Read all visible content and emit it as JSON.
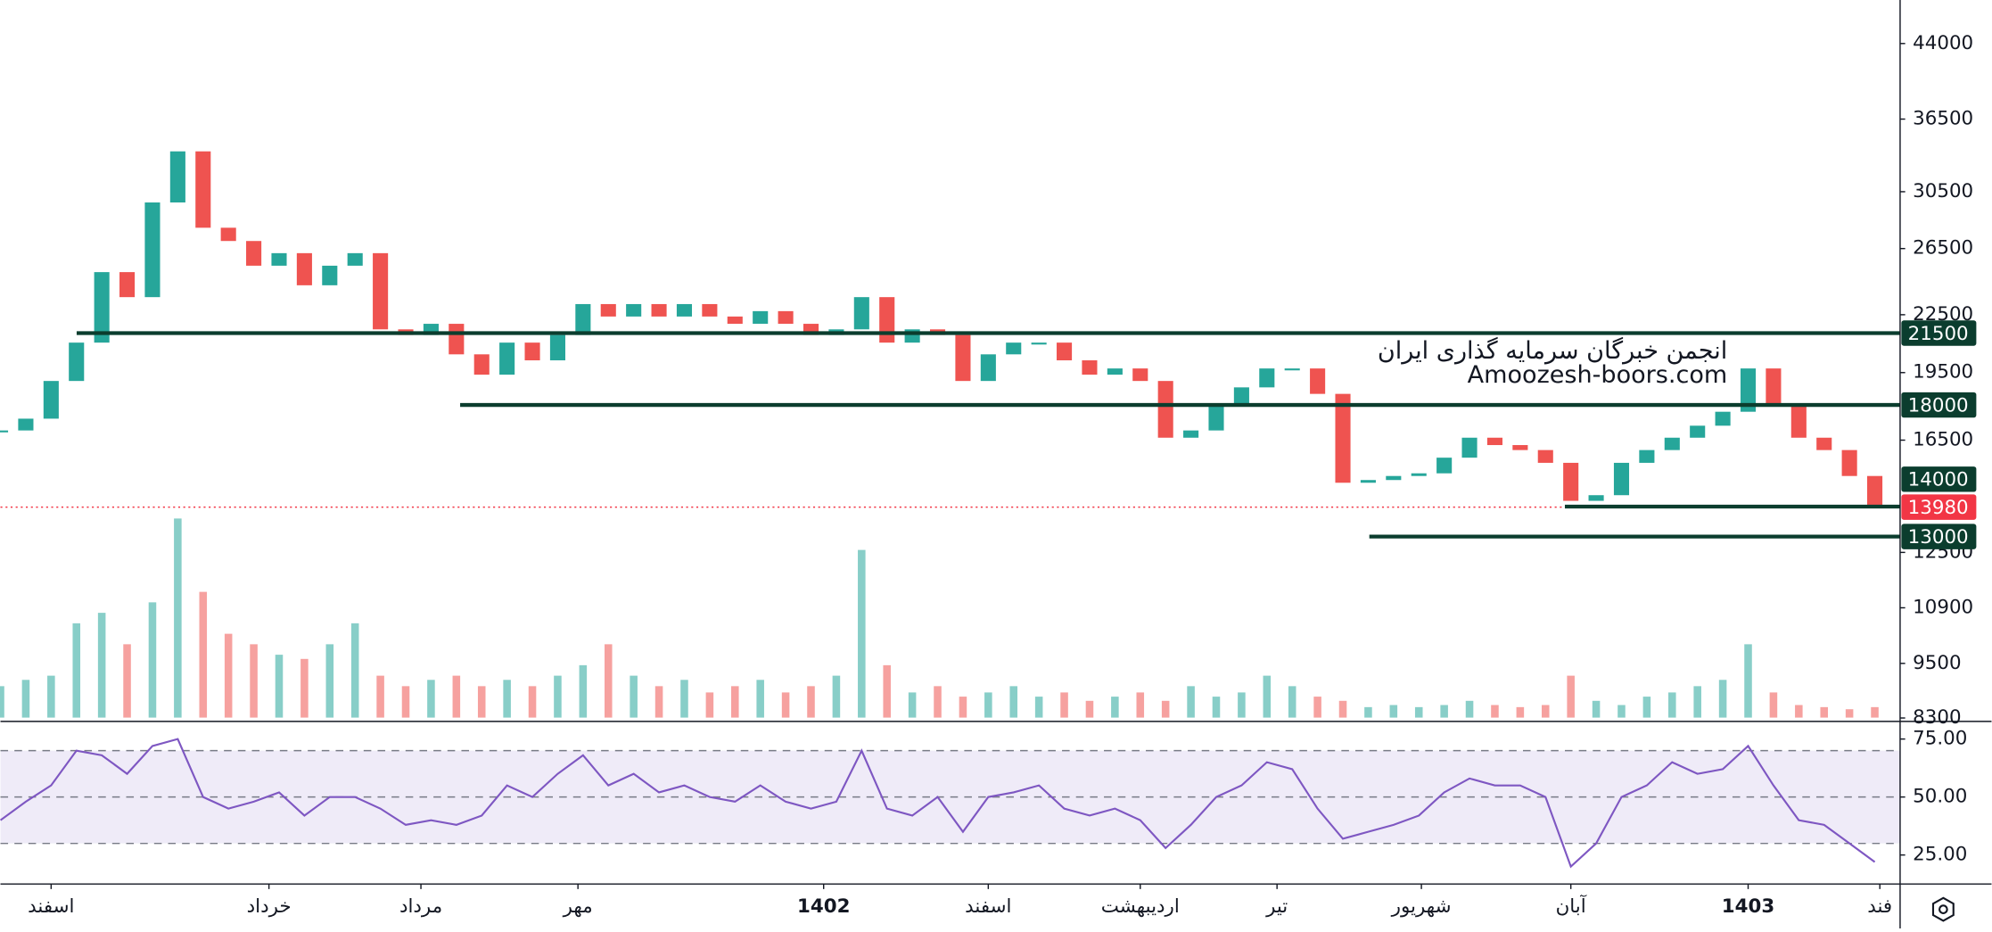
{
  "chart_data": {
    "type": "candlestick",
    "log": true,
    "ylim": [
      8230,
      49000
    ],
    "yticks": [
      44000,
      36500,
      30500,
      26500,
      22500,
      19500,
      16500,
      12500,
      10900,
      9500,
      8300
    ],
    "xlim": [
      0,
      75
    ],
    "xticks": [
      {
        "value": 2,
        "label": "اسفند"
      },
      {
        "value": 10.6,
        "label": "خرداد"
      },
      {
        "value": 16.6,
        "label": "مرداد"
      },
      {
        "value": 22.8,
        "label": "مهر"
      },
      {
        "value": 32.5,
        "label": "1402"
      },
      {
        "value": 39,
        "label": "اسفند"
      },
      {
        "value": 45,
        "label": "اردیبهشت"
      },
      {
        "value": 50.4,
        "label": "تیر"
      },
      {
        "value": 56.1,
        "label": "شهریور"
      },
      {
        "value": 62,
        "label": "آبان"
      },
      {
        "value": 69,
        "label": "1403"
      },
      {
        "value": 74.2,
        "label": "فند"
      }
    ],
    "closes": [
      16900,
      17400,
      19100,
      21000,
      25000,
      23500,
      29700,
      33700,
      27900,
      27000,
      25400,
      26200,
      24200,
      25400,
      26200,
      21700,
      21400,
      22000,
      20400,
      19400,
      21000,
      20100,
      21400,
      23100,
      22400,
      23100,
      22400,
      23100,
      22400,
      22000,
      22700,
      22000,
      21400,
      21700,
      23500,
      21000,
      21700,
      21400,
      19100,
      20400,
      21000,
      21000,
      20100,
      19400,
      19700,
      19100,
      16600,
      16900,
      18000,
      18800,
      19700,
      19700,
      18500,
      14850,
      14950,
      15100,
      15200,
      15800,
      16600,
      16300,
      16100,
      15600,
      14200,
      14400,
      15600,
      16100,
      16600,
      17100,
      17700,
      19700,
      18000,
      16600,
      16100,
      15100,
      13980
    ],
    "volumes": [
      15,
      18,
      20,
      45,
      50,
      35,
      55,
      95,
      60,
      40,
      35,
      30,
      28,
      35,
      45,
      20,
      15,
      18,
      20,
      15,
      18,
      15,
      20,
      25,
      35,
      20,
      15,
      18,
      12,
      15,
      18,
      12,
      15,
      20,
      80,
      25,
      12,
      15,
      10,
      12,
      15,
      10,
      12,
      8,
      10,
      12,
      8,
      15,
      10,
      12,
      20,
      15,
      10,
      8,
      5,
      6,
      5,
      6,
      8,
      6,
      5,
      6,
      20,
      8,
      6,
      10,
      12,
      15,
      18,
      35,
      12,
      6,
      5,
      4,
      5
    ],
    "volume_ylim": [
      0,
      100
    ],
    "up_color": "#26a69a",
    "down_color": "#ef5350",
    "levels": [
      21500,
      18000,
      14000,
      13000
    ],
    "level_color": "#0b3d2e",
    "last_price": 13980,
    "last_price_color": "#f23645",
    "watermark": [
      "انجمن خبرگان سرمایه گذاری ایران",
      "Amoozesh-boors.com"
    ],
    "rsi": {
      "values": [
        40,
        48,
        55,
        70,
        68,
        60,
        72,
        75,
        50,
        45,
        48,
        52,
        42,
        50,
        50,
        45,
        38,
        40,
        38,
        42,
        55,
        50,
        60,
        68,
        55,
        60,
        52,
        55,
        50,
        48,
        55,
        48,
        45,
        48,
        70,
        45,
        42,
        50,
        35,
        50,
        52,
        55,
        45,
        42,
        45,
        40,
        28,
        38,
        50,
        55,
        65,
        62,
        45,
        32,
        35,
        38,
        42,
        52,
        58,
        55,
        55,
        50,
        20,
        30,
        50,
        55,
        65,
        60,
        62,
        72,
        55,
        40,
        38,
        30,
        22
      ],
      "ylim": [
        12.5,
        82.6
      ],
      "yticks": [
        {
          "value": 25,
          "label": "25.00"
        },
        {
          "value": 50,
          "label": "50.00"
        },
        {
          "value": 75,
          "label": "75.00"
        }
      ],
      "bands": [
        30,
        50,
        70
      ],
      "color": "#7e57c2"
    }
  }
}
